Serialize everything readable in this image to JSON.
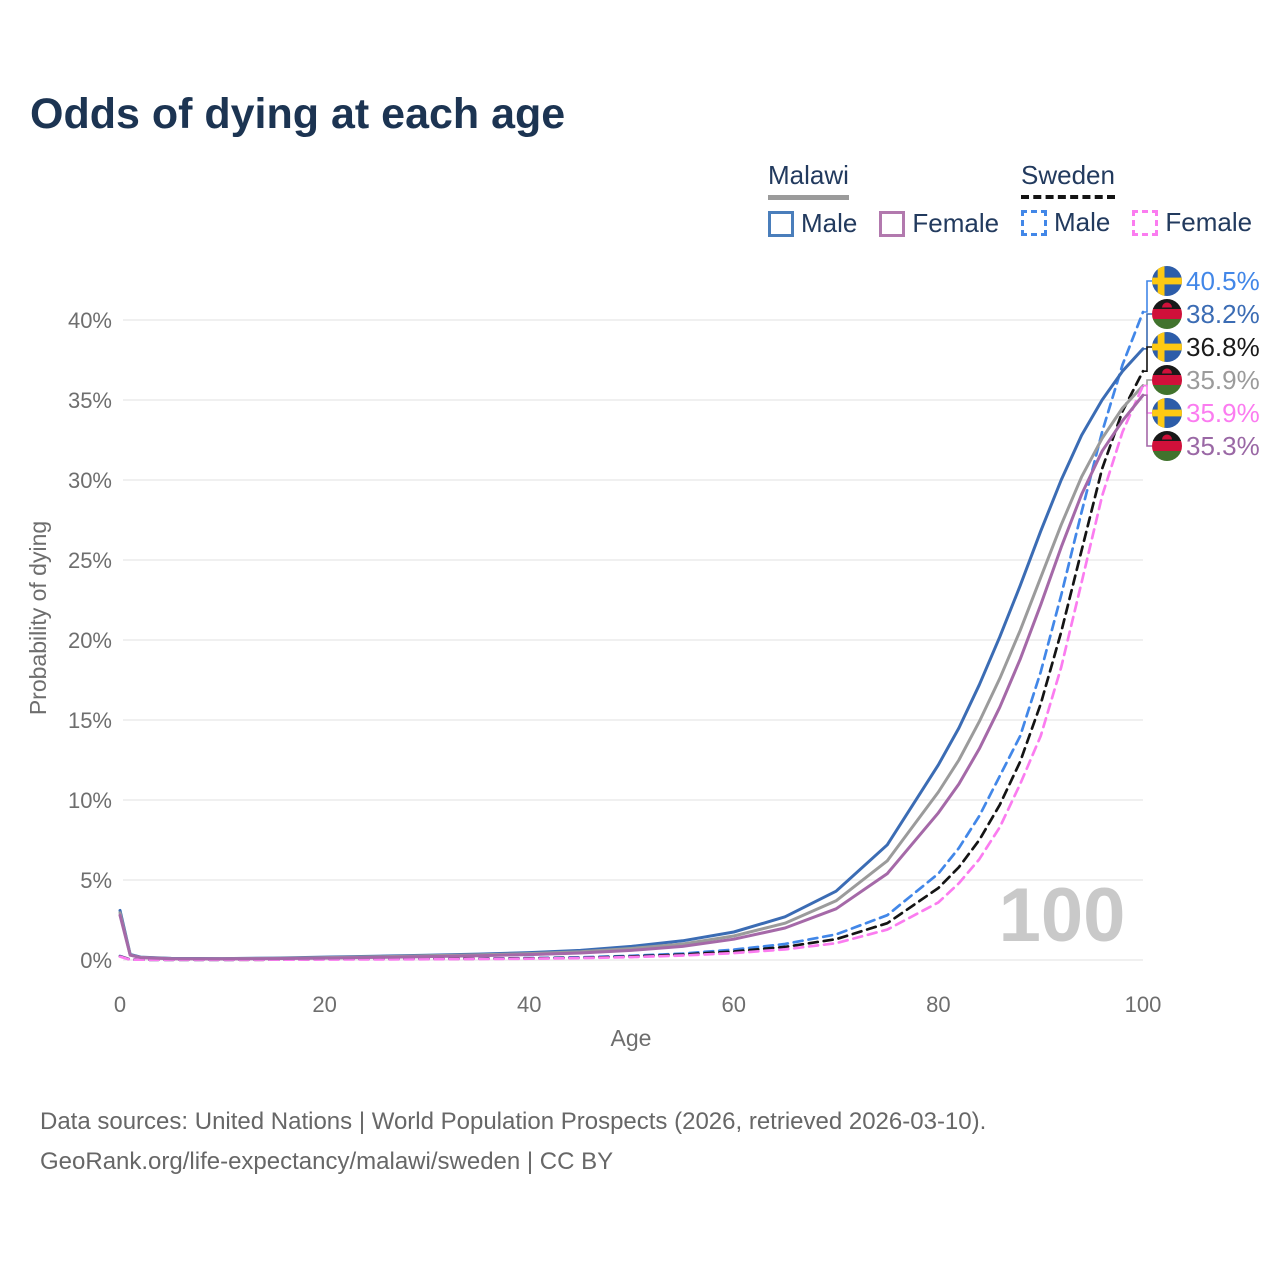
{
  "title": "Odds of dying at each age",
  "legend": {
    "groups": [
      {
        "name": "Malawi",
        "line_style": "solid",
        "line_color": "#9b9b9b",
        "items": [
          {
            "label": "Male",
            "color": "#4a7ebb"
          },
          {
            "label": "Female",
            "color": "#b279ae"
          }
        ]
      },
      {
        "name": "Sweden",
        "line_style": "dashed",
        "line_color": "#141414",
        "items": [
          {
            "label": "Male",
            "color": "#4287e8"
          },
          {
            "label": "Female",
            "color": "#fb7cf0"
          }
        ]
      }
    ]
  },
  "watermark": "100",
  "footer": {
    "line1": "Data sources: United Nations | World Population Prospects (2026, retrieved 2026-03-10).",
    "line2": "GeoRank.org/life-expectancy/malawi/sweden | CC BY"
  },
  "chart_data": {
    "type": "line",
    "title": "Odds of dying at each age",
    "xlabel": "Age",
    "ylabel": "Probability of dying",
    "xlim": [
      0,
      100
    ],
    "ylim": [
      0,
      42
    ],
    "x_ticks": [
      0,
      20,
      40,
      60,
      80,
      100
    ],
    "y_ticks": [
      0,
      5,
      10,
      15,
      20,
      25,
      30,
      35,
      40
    ],
    "y_tick_suffix": "%",
    "grid": "horizontal",
    "legend_position": "top-right",
    "x": [
      0,
      1,
      2,
      5,
      10,
      15,
      20,
      25,
      30,
      35,
      40,
      45,
      50,
      55,
      60,
      65,
      70,
      75,
      80,
      82,
      84,
      86,
      88,
      90,
      92,
      94,
      96,
      98,
      100
    ],
    "series": [
      {
        "id": "sweden-male",
        "name": "Sweden Male",
        "country": "sweden",
        "sex": "male",
        "flag_icon": "sweden-flag-icon",
        "color": "#4287e8",
        "dashed": true,
        "end_value": 40.5,
        "end_label": "40.5%",
        "end_label_color": "#4287e8",
        "values": [
          0.25,
          0.03,
          0.02,
          0.01,
          0.01,
          0.03,
          0.06,
          0.07,
          0.08,
          0.09,
          0.12,
          0.17,
          0.26,
          0.4,
          0.65,
          1.0,
          1.6,
          2.8,
          5.4,
          7.0,
          9.0,
          11.5,
          14.0,
          18.0,
          22.8,
          28.0,
          33.0,
          37.2,
          40.5
        ]
      },
      {
        "id": "malawi-male",
        "name": "Malawi Male",
        "country": "malawi",
        "sex": "male",
        "flag_icon": "malawi-flag-icon",
        "color": "#3b6cb4",
        "dashed": false,
        "end_value": 38.2,
        "end_label": "38.2%",
        "end_label_color": "#3b6cb4",
        "values": [
          3.1,
          0.35,
          0.18,
          0.1,
          0.09,
          0.12,
          0.18,
          0.24,
          0.3,
          0.37,
          0.46,
          0.6,
          0.85,
          1.2,
          1.75,
          2.7,
          4.3,
          7.2,
          12.2,
          14.5,
          17.2,
          20.2,
          23.4,
          26.8,
          30.0,
          32.8,
          35.0,
          36.8,
          38.2
        ]
      },
      {
        "id": "sweden-total",
        "name": "Sweden Both sexes",
        "country": "sweden",
        "sex": "both",
        "flag_icon": "sweden-flag-icon",
        "color": "#141414",
        "dashed": true,
        "end_value": 36.8,
        "end_label": "36.8%",
        "end_label_color": "#1a1a1a",
        "values": [
          0.23,
          0.03,
          0.02,
          0.01,
          0.01,
          0.02,
          0.05,
          0.06,
          0.07,
          0.08,
          0.1,
          0.14,
          0.22,
          0.34,
          0.53,
          0.82,
          1.3,
          2.3,
          4.5,
          5.8,
          7.5,
          9.7,
          12.4,
          16.0,
          20.5,
          25.6,
          30.7,
          34.3,
          36.8
        ]
      },
      {
        "id": "malawi-total",
        "name": "Malawi Both sexes",
        "country": "malawi",
        "sex": "both",
        "flag_icon": "malawi-flag-icon",
        "color": "#9b9b9b",
        "dashed": false,
        "end_value": 35.9,
        "end_label": "35.9%",
        "end_label_color": "#9b9b9b",
        "values": [
          2.95,
          0.32,
          0.16,
          0.09,
          0.08,
          0.1,
          0.15,
          0.2,
          0.26,
          0.32,
          0.4,
          0.52,
          0.72,
          1.0,
          1.5,
          2.3,
          3.7,
          6.2,
          10.5,
          12.5,
          14.9,
          17.6,
          20.6,
          23.9,
          27.2,
          30.2,
          32.6,
          34.5,
          35.9
        ]
      },
      {
        "id": "sweden-female",
        "name": "Sweden Female",
        "country": "sweden",
        "sex": "female",
        "flag_icon": "sweden-flag-icon",
        "color": "#fb7cf0",
        "dashed": true,
        "end_value": 35.9,
        "end_label": "35.9%",
        "end_label_color": "#fb7cf0",
        "values": [
          0.21,
          0.02,
          0.02,
          0.01,
          0.01,
          0.02,
          0.03,
          0.04,
          0.05,
          0.06,
          0.08,
          0.12,
          0.18,
          0.28,
          0.43,
          0.66,
          1.05,
          1.9,
          3.6,
          4.8,
          6.3,
          8.3,
          11.0,
          14.0,
          18.3,
          23.6,
          29.0,
          33.0,
          35.9
        ]
      },
      {
        "id": "malawi-female",
        "name": "Malawi Female",
        "country": "malawi",
        "sex": "female",
        "flag_icon": "malawi-flag-icon",
        "color": "#a569a8",
        "dashed": false,
        "end_value": 35.3,
        "end_label": "35.3%",
        "end_label_color": "#9a68a5",
        "values": [
          2.8,
          0.3,
          0.15,
          0.08,
          0.07,
          0.09,
          0.12,
          0.16,
          0.21,
          0.27,
          0.34,
          0.44,
          0.6,
          0.85,
          1.3,
          2.0,
          3.2,
          5.4,
          9.2,
          11.0,
          13.2,
          15.8,
          18.8,
          22.2,
          25.8,
          29.1,
          31.8,
          33.7,
          35.3
        ]
      }
    ]
  }
}
